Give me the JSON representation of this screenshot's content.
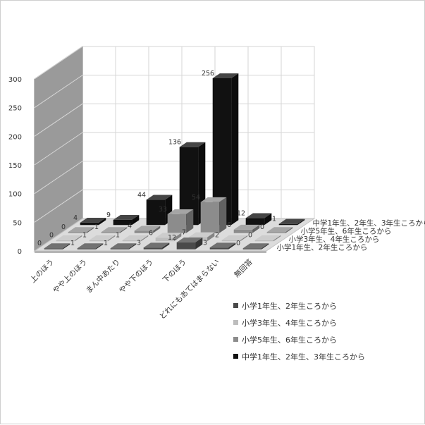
{
  "chart_data": {
    "type": "bar",
    "variant": "3d-column",
    "title": "",
    "xlabel": "",
    "ylabel": "",
    "ylim": [
      0,
      300
    ],
    "yticks": [
      0,
      50,
      100,
      150,
      200,
      250,
      300
    ],
    "grid": true,
    "legend_position": "bottom-right",
    "categories": [
      "上のほう",
      "やや上のほう",
      "まん中あたり",
      "やや下のほう",
      "下のほう",
      "どれにもあてはまらない",
      "無回答"
    ],
    "series": [
      {
        "name": "小学1年生、2年生ころから",
        "values": [
          0,
          1,
          1,
          3,
          12,
          3,
          0
        ],
        "color": "#4a4a4a"
      },
      {
        "name": "小学3年生、4年生ころから",
        "values": [
          0,
          1,
          1,
          6,
          7,
          2,
          0
        ],
        "color": "#bdbdbd"
      },
      {
        "name": "小学5年生、6年生ころから",
        "values": [
          0,
          1,
          4,
          33,
          54,
          6,
          0
        ],
        "color": "#8c8c8c"
      },
      {
        "name": "中学1年生、2年生、3年生ころから",
        "values": [
          4,
          9,
          44,
          136,
          256,
          12,
          1
        ],
        "color": "#111111"
      }
    ],
    "depth_labels": [
      "小学1年生、2年生ころから",
      "小学3年生、4年生ころから",
      "小学5年生、6年生ころから",
      "中学1年生、2年生、3年生ころから"
    ]
  }
}
